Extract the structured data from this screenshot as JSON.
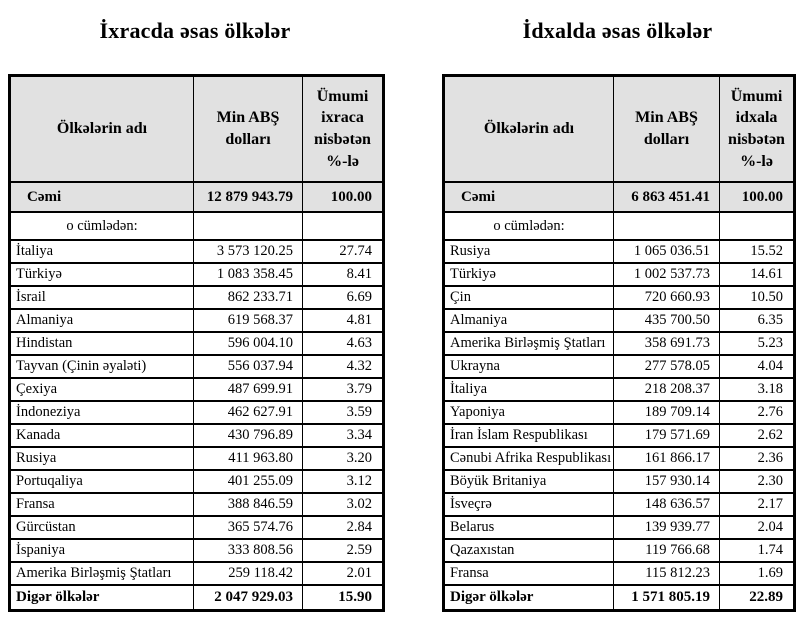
{
  "colors": {
    "header_bg": "#e1e1e1",
    "border": "#000000",
    "page_bg": "#ffffff"
  },
  "tables": [
    {
      "title": "İxracda əsas ölkələr",
      "headers": [
        "Ölkələrin adı",
        "Min ABŞ dolları",
        "Ümumi ixraca nisbətən %-lə"
      ],
      "total_row": {
        "label": "Cəmi",
        "value": "12 879 943.79",
        "percent": "100.00"
      },
      "subheader": "o cümlədən:",
      "rows": [
        {
          "name": "İtaliya",
          "value": "3 573 120.25",
          "percent": "27.74"
        },
        {
          "name": "Türkiyə",
          "value": "1 083 358.45",
          "percent": "8.41"
        },
        {
          "name": "İsrail",
          "value": "862 233.71",
          "percent": "6.69"
        },
        {
          "name": "Almaniya",
          "value": "619 568.37",
          "percent": "4.81"
        },
        {
          "name": "Hindistan",
          "value": "596 004.10",
          "percent": "4.63"
        },
        {
          "name": "Tayvan (Çinin əyaləti)",
          "value": "556 037.94",
          "percent": "4.32"
        },
        {
          "name": "Çexiya",
          "value": "487 699.91",
          "percent": "3.79"
        },
        {
          "name": "İndoneziya",
          "value": "462 627.91",
          "percent": "3.59"
        },
        {
          "name": "Kanada",
          "value": "430 796.89",
          "percent": "3.34"
        },
        {
          "name": "Rusiya",
          "value": "411 963.80",
          "percent": "3.20"
        },
        {
          "name": "Portuqaliya",
          "value": "401 255.09",
          "percent": "3.12"
        },
        {
          "name": "Fransa",
          "value": "388 846.59",
          "percent": "3.02"
        },
        {
          "name": "Gürcüstan",
          "value": "365 574.76",
          "percent": "2.84"
        },
        {
          "name": "İspaniya",
          "value": "333 808.56",
          "percent": "2.59"
        },
        {
          "name": "Amerika Birləşmiş Ştatları",
          "value": "259 118.42",
          "percent": "2.01"
        }
      ],
      "footer_row": {
        "label": "Digər ölkələr",
        "value": "2 047 929.03",
        "percent": "15.90"
      }
    },
    {
      "title": "İdxalda əsas ölkələr",
      "headers": [
        "Ölkələrin adı",
        "Min ABŞ dolları",
        "Ümumi idxala nisbətən %-lə"
      ],
      "total_row": {
        "label": "Cəmi",
        "value": "6 863 451.41",
        "percent": "100.00"
      },
      "subheader": "o cümlədən:",
      "rows": [
        {
          "name": "Rusiya",
          "value": "1 065 036.51",
          "percent": "15.52"
        },
        {
          "name": "Türkiyə",
          "value": "1 002 537.73",
          "percent": "14.61"
        },
        {
          "name": "Çin",
          "value": "720 660.93",
          "percent": "10.50"
        },
        {
          "name": "Almaniya",
          "value": "435 700.50",
          "percent": "6.35"
        },
        {
          "name": "Amerika Birləşmiş Ştatları",
          "value": "358 691.73",
          "percent": "5.23"
        },
        {
          "name": "Ukrayna",
          "value": "277 578.05",
          "percent": "4.04"
        },
        {
          "name": "İtaliya",
          "value": "218 208.37",
          "percent": "3.18"
        },
        {
          "name": "Yaponiya",
          "value": "189 709.14",
          "percent": "2.76"
        },
        {
          "name": "İran İslam Respublikası",
          "value": "179 571.69",
          "percent": "2.62"
        },
        {
          "name": "Cənubi Afrika Respublikası",
          "value": "161 866.17",
          "percent": "2.36"
        },
        {
          "name": "Böyük Britaniya",
          "value": "157 930.14",
          "percent": "2.30"
        },
        {
          "name": "İsveçrə",
          "value": "148 636.57",
          "percent": "2.17"
        },
        {
          "name": "Belarus",
          "value": "139 939.77",
          "percent": "2.04"
        },
        {
          "name": "Qazaxıstan",
          "value": "119 766.68",
          "percent": "1.74"
        },
        {
          "name": "Fransa",
          "value": "115 812.23",
          "percent": "1.69"
        }
      ],
      "footer_row": {
        "label": "Digər ölkələr",
        "value": "1 571 805.19",
        "percent": "22.89"
      }
    }
  ]
}
